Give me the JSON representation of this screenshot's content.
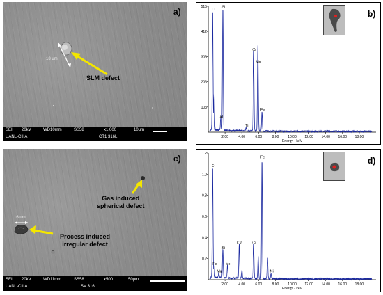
{
  "panel_a": {
    "letter": "a)",
    "annotation": "SLM defect",
    "measurement": "18 um",
    "info_line1": [
      "SEI",
      "20kV",
      "WD10mm",
      "SS58",
      "x1,000",
      "10μm"
    ],
    "info_line2": [
      "UANL-CIIIA",
      "CT1 316L"
    ]
  },
  "panel_c": {
    "letter": "c)",
    "annotation_gas": "Gas induced\nspherical defect",
    "annotation_gas_line1": "Gas induced",
    "annotation_gas_line2": "spherical defect",
    "annotation_process_line1": "Process induced",
    "annotation_process_line2": "irregular defect",
    "measurement": "16 um",
    "info_line1": [
      "SEI",
      "20kV",
      "WD11mm",
      "SS58",
      "x500",
      "50μm"
    ],
    "info_line2": [
      "UANL-CIIIA",
      "SV 316L"
    ]
  },
  "chart_data": [
    {
      "type": "line",
      "panel_letter": "b)",
      "xlabel": "Energy - keV",
      "x_ticks": [
        "2.00",
        "4.00",
        "6.00",
        "8.00",
        "10.00",
        "12.00",
        "14.00",
        "16.00",
        "18.00"
      ],
      "y_ticks": [
        "103",
        "206",
        "309",
        "412",
        "515"
      ],
      "ylim": [
        0,
        515
      ],
      "xlim": [
        0,
        20
      ],
      "series_color": "#1c2aa0",
      "peaks": [
        {
          "label": "O",
          "x": 0.52,
          "y": 490
        },
        {
          "label": "",
          "x": 0.7,
          "y": 150
        },
        {
          "label": "Al",
          "x": 1.49,
          "y": 50
        },
        {
          "label": "Si",
          "x": 1.74,
          "y": 500
        },
        {
          "label": "Ti",
          "x": 4.51,
          "y": 14
        },
        {
          "label": "Cr",
          "x": 5.41,
          "y": 325
        },
        {
          "label": "Mn",
          "x": 5.9,
          "y": 275
        },
        {
          "label": "",
          "x": 5.95,
          "y": 120
        },
        {
          "label": "Fe",
          "x": 6.4,
          "y": 80
        }
      ]
    },
    {
      "type": "line",
      "panel_letter": "d)",
      "xlabel": "Energy - keV",
      "x_ticks": [
        "2.00",
        "4.00",
        "6.00",
        "8.00",
        "10.00",
        "12.00",
        "14.00",
        "16.00",
        "18.00"
      ],
      "y_ticks": [
        "0.2",
        "0.4",
        "0.6",
        "0.8",
        "1.0",
        "1.2"
      ],
      "ylim": [
        0,
        1.2
      ],
      "xlim": [
        0,
        20
      ],
      "series_color": "#1c2aa0",
      "peaks": [
        {
          "label": "O",
          "x": 0.52,
          "y": 1.05
        },
        {
          "label": "Fe",
          "x": 0.7,
          "y": 0.12
        },
        {
          "label": "Mg",
          "x": 1.25,
          "y": 0.05
        },
        {
          "label": "Si",
          "x": 1.74,
          "y": 0.27
        },
        {
          "label": "Mo",
          "x": 2.29,
          "y": 0.12
        },
        {
          "label": "Ca",
          "x": 3.69,
          "y": 0.32
        },
        {
          "label": "",
          "x": 4.01,
          "y": 0.08
        },
        {
          "label": "Cr",
          "x": 5.41,
          "y": 0.32
        },
        {
          "label": "",
          "x": 5.95,
          "y": 0.22
        },
        {
          "label": "Fe",
          "x": 6.4,
          "y": 1.13
        },
        {
          "label": "",
          "x": 7.06,
          "y": 0.2
        },
        {
          "label": "Ni",
          "x": 7.48,
          "y": 0.05
        }
      ]
    }
  ]
}
